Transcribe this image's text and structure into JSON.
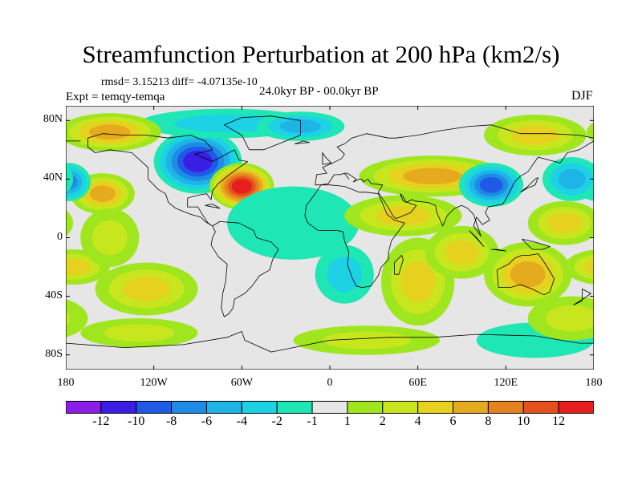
{
  "title": "Streamfunction Perturbation at 200 hPa (km2/s)",
  "stats_line": "rmsd= 3.15213 diff= -4.07135e-10",
  "experiment_line": "Expt = temqy-temqa",
  "period_line": "24.0kyr BP - 00.0kyr BP",
  "season": "DJF",
  "axes": {
    "y_ticks": [
      {
        "label": "80N",
        "value": 80
      },
      {
        "label": "40N",
        "value": 40
      },
      {
        "label": "0",
        "value": 0
      },
      {
        "label": "40S",
        "value": -40
      },
      {
        "label": "80S",
        "value": -80
      }
    ],
    "x_ticks": [
      {
        "label": "180",
        "value": -180
      },
      {
        "label": "120W",
        "value": -120
      },
      {
        "label": "60W",
        "value": -60
      },
      {
        "label": "0",
        "value": 0
      },
      {
        "label": "60E",
        "value": 60
      },
      {
        "label": "120E",
        "value": 120
      },
      {
        "label": "180",
        "value": 180
      }
    ],
    "lon_range": [
      -180,
      180
    ],
    "lat_range": [
      -90,
      90
    ]
  },
  "colorbar": {
    "colors": [
      "#8a1ee6",
      "#3a1ee6",
      "#1e5ae6",
      "#1e8ce6",
      "#1eb4e6",
      "#1ed2e6",
      "#1ee6b4",
      "#e6e6e6",
      "#a0e61e",
      "#c8e61e",
      "#e6d21e",
      "#e6aa1e",
      "#e6821e",
      "#e6501e",
      "#e61e1e"
    ],
    "labels": [
      {
        "text": "-12",
        "boundary": 1
      },
      {
        "text": "-10",
        "boundary": 2
      },
      {
        "text": "-8",
        "boundary": 3
      },
      {
        "text": "-6",
        "boundary": 4
      },
      {
        "text": "-4",
        "boundary": 5
      },
      {
        "text": "-2",
        "boundary": 6
      },
      {
        "text": "-1",
        "boundary": 7
      },
      {
        "text": "1",
        "boundary": 8
      },
      {
        "text": "2",
        "boundary": 9
      },
      {
        "text": "4",
        "boundary": 10
      },
      {
        "text": "6",
        "boundary": 11
      },
      {
        "text": "8",
        "boundary": 12
      },
      {
        "text": "10",
        "boundary": 13
      },
      {
        "text": "12",
        "boundary": 14
      }
    ]
  },
  "field_blobs": [
    {
      "lon": -90,
      "lat": 52,
      "rlon": 30,
      "rlat": 22,
      "v": -12
    },
    {
      "lon": -70,
      "lat": 78,
      "rlon": 60,
      "rlat": 10,
      "v": -4
    },
    {
      "lon": -60,
      "lat": 35,
      "rlon": 22,
      "rlat": 16,
      "v": 12
    },
    {
      "lon": -150,
      "lat": 72,
      "rlon": 35,
      "rlat": 13,
      "v": 6
    },
    {
      "lon": -155,
      "lat": 30,
      "rlon": 22,
      "rlat": 14,
      "v": 7
    },
    {
      "lon": -178,
      "lat": 38,
      "rlon": 15,
      "rlat": 13,
      "v": -8
    },
    {
      "lon": -175,
      "lat": -20,
      "rlon": 25,
      "rlat": 12,
      "v": 4
    },
    {
      "lon": -150,
      "lat": 0,
      "rlon": 20,
      "rlat": 20,
      "v": 2
    },
    {
      "lon": -125,
      "lat": -35,
      "rlon": 35,
      "rlat": 18,
      "v": 5
    },
    {
      "lon": -130,
      "lat": -65,
      "rlon": 40,
      "rlat": 10,
      "v": 2
    },
    {
      "lon": -25,
      "lat": 10,
      "rlon": 45,
      "rlat": 25,
      "v": -2
    },
    {
      "lon": -5,
      "lat": 40,
      "rlon": 30,
      "rlat": 14,
      "v": -1
    },
    {
      "lon": -20,
      "lat": 76,
      "rlon": 30,
      "rlat": 10,
      "v": -5
    },
    {
      "lon": 10,
      "lat": -25,
      "rlon": 20,
      "rlat": 20,
      "v": -3
    },
    {
      "lon": 25,
      "lat": -70,
      "rlon": 50,
      "rlat": 10,
      "v": 3
    },
    {
      "lon": 70,
      "lat": 42,
      "rlon": 50,
      "rlat": 14,
      "v": 7
    },
    {
      "lon": 50,
      "lat": 15,
      "rlon": 40,
      "rlat": 14,
      "v": 4
    },
    {
      "lon": 60,
      "lat": -30,
      "rlon": 25,
      "rlat": 30,
      "v": 5
    },
    {
      "lon": 90,
      "lat": -10,
      "rlon": 25,
      "rlat": 18,
      "v": 4
    },
    {
      "lon": 135,
      "lat": -25,
      "rlon": 30,
      "rlat": 22,
      "v": 6
    },
    {
      "lon": 140,
      "lat": 70,
      "rlon": 35,
      "rlat": 14,
      "v": 5
    },
    {
      "lon": 110,
      "lat": 36,
      "rlon": 22,
      "rlat": 15,
      "v": -10
    },
    {
      "lon": 165,
      "lat": 40,
      "rlon": 20,
      "rlat": 15,
      "v": -6
    },
    {
      "lon": 160,
      "lat": 10,
      "rlon": 25,
      "rlat": 15,
      "v": 4
    },
    {
      "lon": 140,
      "lat": -70,
      "rlon": 40,
      "rlat": 12,
      "v": -2
    },
    {
      "lon": 165,
      "lat": -55,
      "rlon": 30,
      "rlat": 15,
      "v": 3
    }
  ],
  "coastlines": [
    [
      [
        -165,
        68
      ],
      [
        -155,
        71
      ],
      [
        -140,
        70
      ],
      [
        -125,
        70
      ],
      [
        -110,
        68
      ],
      [
        -95,
        70
      ],
      [
        -85,
        66
      ],
      [
        -80,
        60
      ],
      [
        -92,
        57
      ],
      [
        -80,
        52
      ],
      [
        -65,
        60
      ],
      [
        -62,
        53
      ],
      [
        -56,
        52
      ],
      [
        -66,
        45
      ],
      [
        -70,
        42
      ],
      [
        -76,
        37
      ],
      [
        -80,
        32
      ],
      [
        -81,
        26
      ],
      [
        -84,
        30
      ],
      [
        -90,
        29
      ],
      [
        -97,
        27
      ],
      [
        -97,
        21
      ],
      [
        -90,
        21
      ],
      [
        -87,
        16
      ],
      [
        -83,
        10
      ],
      [
        -80,
        8
      ],
      [
        -85,
        11
      ],
      [
        -88,
        14
      ],
      [
        -95,
        16
      ],
      [
        -105,
        20
      ],
      [
        -110,
        24
      ],
      [
        -112,
        30
      ],
      [
        -117,
        33
      ],
      [
        -124,
        40
      ],
      [
        -124,
        48
      ],
      [
        -135,
        58
      ],
      [
        -150,
        60
      ],
      [
        -160,
        58
      ],
      [
        -165,
        62
      ],
      [
        -165,
        68
      ]
    ],
    [
      [
        -80,
        8
      ],
      [
        -75,
        11
      ],
      [
        -62,
        10
      ],
      [
        -52,
        5
      ],
      [
        -50,
        0
      ],
      [
        -40,
        -3
      ],
      [
        -35,
        -8
      ],
      [
        -39,
        -15
      ],
      [
        -41,
        -22
      ],
      [
        -48,
        -26
      ],
      [
        -53,
        -33
      ],
      [
        -58,
        -38
      ],
      [
        -65,
        -42
      ],
      [
        -66,
        -48
      ],
      [
        -69,
        -52
      ],
      [
        -72,
        -54
      ],
      [
        -74,
        -48
      ],
      [
        -73,
        -38
      ],
      [
        -71,
        -30
      ],
      [
        -70,
        -18
      ],
      [
        -76,
        -13
      ],
      [
        -81,
        -5
      ],
      [
        -80,
        0
      ],
      [
        -78,
        4
      ],
      [
        -80,
        8
      ]
    ],
    [
      [
        -55,
        60
      ],
      [
        -45,
        60
      ],
      [
        -20,
        70
      ],
      [
        -20,
        80
      ],
      [
        -40,
        83
      ],
      [
        -60,
        82
      ],
      [
        -72,
        77
      ],
      [
        -60,
        70
      ],
      [
        -55,
        60
      ]
    ],
    [
      [
        -10,
        36
      ],
      [
        -9,
        43
      ],
      [
        -2,
        44
      ],
      [
        -5,
        48
      ],
      [
        2,
        51
      ],
      [
        8,
        54
      ],
      [
        10,
        57
      ],
      [
        5,
        62
      ],
      [
        10,
        64
      ],
      [
        15,
        68
      ],
      [
        25,
        71
      ],
      [
        40,
        68
      ],
      [
        45,
        68
      ],
      [
        60,
        70
      ],
      [
        75,
        73
      ],
      [
        95,
        76
      ],
      [
        110,
        77
      ],
      [
        130,
        71
      ],
      [
        150,
        71
      ],
      [
        170,
        70
      ],
      [
        180,
        68
      ]
    ],
    [
      [
        -180,
        66
      ],
      [
        -170,
        66
      ]
    ],
    [
      [
        180,
        66
      ],
      [
        170,
        60
      ],
      [
        162,
        58
      ],
      [
        157,
        51
      ],
      [
        142,
        55
      ],
      [
        135,
        45
      ],
      [
        130,
        42
      ],
      [
        126,
        38
      ],
      [
        122,
        30
      ],
      [
        118,
        23
      ],
      [
        108,
        21
      ],
      [
        106,
        17
      ],
      [
        109,
        12
      ],
      [
        104,
        9
      ],
      [
        100,
        14
      ],
      [
        98,
        8
      ],
      [
        103,
        1
      ],
      [
        98,
        16
      ],
      [
        94,
        20
      ],
      [
        90,
        22
      ],
      [
        85,
        20
      ],
      [
        80,
        15
      ],
      [
        77,
        8
      ],
      [
        73,
        17
      ],
      [
        72,
        22
      ],
      [
        67,
        24
      ],
      [
        58,
        25
      ],
      [
        56,
        26
      ],
      [
        52,
        24
      ],
      [
        50,
        28
      ],
      [
        48,
        30
      ],
      [
        50,
        25
      ],
      [
        56,
        23
      ],
      [
        59,
        22
      ],
      [
        55,
        17
      ],
      [
        45,
        13
      ],
      [
        43,
        15
      ],
      [
        39,
        22
      ],
      [
        35,
        28
      ],
      [
        33,
        31
      ],
      [
        36,
        36
      ],
      [
        28,
        37
      ],
      [
        26,
        40
      ],
      [
        23,
        38
      ],
      [
        22,
        40
      ],
      [
        20,
        40
      ],
      [
        16,
        38
      ],
      [
        18,
        40
      ],
      [
        12,
        44
      ],
      [
        10,
        44
      ],
      [
        13,
        40
      ],
      [
        10,
        44
      ],
      [
        7,
        43
      ],
      [
        3,
        43
      ],
      [
        -1,
        37
      ],
      [
        -6,
        36
      ],
      [
        -10,
        36
      ]
    ],
    [
      [
        -6,
        36
      ],
      [
        -10,
        30
      ],
      [
        -16,
        22
      ],
      [
        -17,
        15
      ],
      [
        -15,
        10
      ],
      [
        -8,
        5
      ],
      [
        5,
        5
      ],
      [
        9,
        4
      ],
      [
        10,
        -2
      ],
      [
        13,
        -10
      ],
      [
        12,
        -18
      ],
      [
        15,
        -27
      ],
      [
        18,
        -33
      ],
      [
        22,
        -34
      ],
      [
        28,
        -33
      ],
      [
        33,
        -26
      ],
      [
        35,
        -20
      ],
      [
        40,
        -15
      ],
      [
        40,
        -10
      ],
      [
        42,
        -2
      ],
      [
        51,
        10
      ],
      [
        44,
        12
      ],
      [
        39,
        16
      ],
      [
        37,
        21
      ],
      [
        33,
        30
      ],
      [
        25,
        31
      ],
      [
        20,
        31
      ],
      [
        10,
        35
      ],
      [
        0,
        36
      ],
      [
        -6,
        36
      ]
    ],
    [
      [
        114,
        -22
      ],
      [
        115,
        -34
      ],
      [
        123,
        -34
      ],
      [
        130,
        -32
      ],
      [
        138,
        -35
      ],
      [
        146,
        -39
      ],
      [
        150,
        -37
      ],
      [
        153,
        -28
      ],
      [
        150,
        -23
      ],
      [
        145,
        -15
      ],
      [
        142,
        -11
      ],
      [
        136,
        -12
      ],
      [
        131,
        -12
      ],
      [
        126,
        -14
      ],
      [
        122,
        -18
      ],
      [
        114,
        -22
      ]
    ],
    [
      [
        -180,
        -72
      ],
      [
        -140,
        -75
      ],
      [
        -100,
        -73
      ],
      [
        -70,
        -68
      ],
      [
        -60,
        -64
      ],
      [
        -58,
        -70
      ],
      [
        -40,
        -78
      ],
      [
        0,
        -70
      ],
      [
        40,
        -68
      ],
      [
        70,
        -68
      ],
      [
        100,
        -66
      ],
      [
        140,
        -67
      ],
      [
        170,
        -72
      ],
      [
        180,
        -72
      ]
    ],
    [
      [
        -5,
        50
      ],
      [
        1,
        51
      ],
      [
        -3,
        55
      ],
      [
        -5,
        58
      ],
      [
        -5,
        50
      ]
    ],
    [
      [
        130,
        31
      ],
      [
        135,
        34
      ],
      [
        140,
        36
      ],
      [
        142,
        41
      ],
      [
        140,
        40
      ],
      [
        135,
        35
      ],
      [
        130,
        31
      ]
    ],
    [
      [
        95,
        5
      ],
      [
        105,
        -6
      ],
      [
        100,
        0
      ],
      [
        95,
        5
      ]
    ],
    [
      [
        110,
        -8
      ],
      [
        120,
        -9
      ],
      [
        114,
        -8
      ],
      [
        110,
        -8
      ]
    ],
    [
      [
        131,
        -1
      ],
      [
        140,
        -3
      ],
      [
        150,
        -6
      ],
      [
        145,
        -8
      ],
      [
        138,
        -8
      ],
      [
        131,
        -1
      ]
    ],
    [
      [
        44,
        -25
      ],
      [
        47,
        -25
      ],
      [
        50,
        -15
      ],
      [
        49,
        -12
      ],
      [
        44,
        -17
      ],
      [
        44,
        -25
      ]
    ],
    [
      [
        166,
        -46
      ],
      [
        174,
        -41
      ],
      [
        178,
        -38
      ],
      [
        172,
        -35
      ],
      [
        172,
        -43
      ],
      [
        166,
        -46
      ]
    ],
    [
      [
        -24,
        64
      ],
      [
        -14,
        65
      ],
      [
        -18,
        66
      ],
      [
        -24,
        64
      ]
    ],
    [
      [
        -85,
        22
      ],
      [
        -75,
        20
      ],
      [
        -80,
        23
      ],
      [
        -85,
        22
      ]
    ]
  ]
}
